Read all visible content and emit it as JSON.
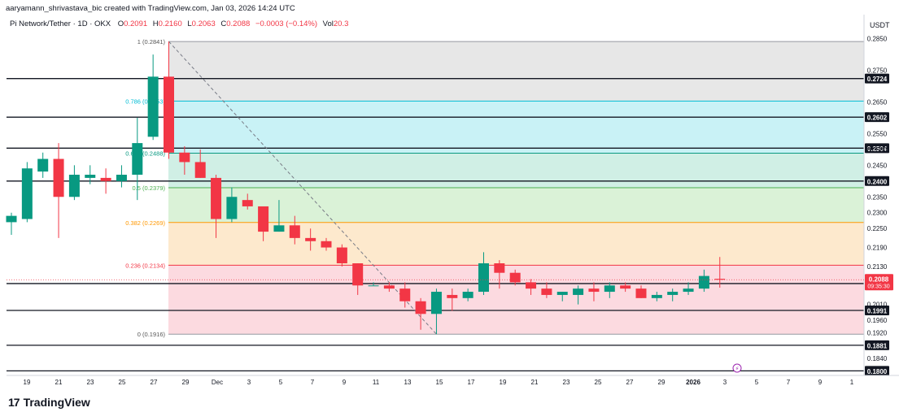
{
  "header": {
    "credit": "aaryamann_shrivastava_bic created with TradingView.com, Jan 03, 2026 14:24 UTC",
    "symbol": "Pi Network/Tether · 1D · OKX",
    "ohlc": [
      {
        "label": "O",
        "value": "0.2091"
      },
      {
        "label": "H",
        "value": "0.2160"
      },
      {
        "label": "L",
        "value": "0.2063"
      },
      {
        "label": "C",
        "value": "0.2088"
      },
      {
        "label": "",
        "value": "−0.0003 (−0.14%)"
      },
      {
        "label": "Vol",
        "value": "20.3"
      }
    ],
    "currency": "USDT"
  },
  "footer": {
    "logo_mark": "17",
    "logo_text": "TradingView"
  },
  "chart_data": {
    "type": "candlestick",
    "ylim": [
      0.1765,
      0.2885
    ],
    "x_labels": [
      "19",
      "21",
      "23",
      "25",
      "27",
      "29",
      "Dec",
      "3",
      "5",
      "7",
      "9",
      "11",
      "13",
      "15",
      "17",
      "19",
      "21",
      "23",
      "25",
      "27",
      "29",
      "2026",
      "3",
      "5",
      "7",
      "9",
      "1"
    ],
    "y_ticks": [
      "0.2850",
      "0.2750",
      "0.2650",
      "0.2550",
      "0.2500",
      "0.2450",
      "0.2350",
      "0.2300",
      "0.2250",
      "0.2190",
      "0.2130",
      "0.2010",
      "0.1960",
      "0.1920",
      "0.1840"
    ],
    "fib": [
      {
        "label": "1 (0.2841)",
        "value": 0.2841,
        "fill": "#e3e3e3",
        "line": "#9598a1"
      },
      {
        "label": "0.786 (0.2653)",
        "value": 0.2653,
        "fill": "#bff0f5",
        "line": "#00bcd4"
      },
      {
        "label": "0.618 (0.2488)",
        "value": 0.2488,
        "fill": "#c8ece0",
        "line": "#089981"
      },
      {
        "label": "0.5 (0.2379)",
        "value": 0.2379,
        "fill": "#d4f0d0",
        "line": "#4caf50"
      },
      {
        "label": "0.382 (0.2269)",
        "value": 0.2269,
        "fill": "#fde5c4",
        "line": "#ff9800"
      },
      {
        "label": "0.236 (0.2134)",
        "value": 0.2134,
        "fill": "#fbd3da",
        "line": "#f23645"
      },
      {
        "label": "0 (0.1916)",
        "value": 0.1916,
        "fill": "",
        "line": "#9598a1"
      }
    ],
    "levels": [
      "0.2724",
      "0.2602",
      "0.2504",
      "0.2400",
      "0.2076",
      "0.1991",
      "0.1881",
      "0.1800"
    ],
    "last_price": {
      "value": "0.2088",
      "countdown": "09:35:30",
      "color": "#f23645"
    },
    "candles": [
      [
        0.227,
        0.23,
        0.223,
        0.229
      ],
      [
        0.228,
        0.246,
        0.227,
        0.244
      ],
      [
        0.243,
        0.249,
        0.241,
        0.247
      ],
      [
        0.247,
        0.252,
        0.222,
        0.235
      ],
      [
        0.235,
        0.245,
        0.234,
        0.242
      ],
      [
        0.241,
        0.245,
        0.239,
        0.242
      ],
      [
        0.241,
        0.244,
        0.236,
        0.24
      ],
      [
        0.24,
        0.245,
        0.238,
        0.242
      ],
      [
        0.242,
        0.26,
        0.234,
        0.252
      ],
      [
        0.254,
        0.28,
        0.253,
        0.273
      ],
      [
        0.273,
        0.2841,
        0.247,
        0.249
      ],
      [
        0.249,
        0.251,
        0.242,
        0.246
      ],
      [
        0.246,
        0.25,
        0.241,
        0.241
      ],
      [
        0.241,
        0.242,
        0.222,
        0.228
      ],
      [
        0.228,
        0.238,
        0.227,
        0.235
      ],
      [
        0.234,
        0.236,
        0.231,
        0.232
      ],
      [
        0.232,
        0.231,
        0.221,
        0.224
      ],
      [
        0.224,
        0.234,
        0.224,
        0.226
      ],
      [
        0.226,
        0.229,
        0.22,
        0.222
      ],
      [
        0.222,
        0.225,
        0.218,
        0.221
      ],
      [
        0.221,
        0.222,
        0.218,
        0.219
      ],
      [
        0.219,
        0.22,
        0.213,
        0.214
      ],
      [
        0.214,
        0.214,
        0.204,
        0.207
      ],
      [
        0.207,
        0.208,
        0.207,
        0.207
      ],
      [
        0.207,
        0.208,
        0.205,
        0.206
      ],
      [
        0.206,
        0.208,
        0.2,
        0.202
      ],
      [
        0.202,
        0.203,
        0.193,
        0.198
      ],
      [
        0.198,
        0.206,
        0.1916,
        0.205
      ],
      [
        0.204,
        0.206,
        0.199,
        0.203
      ],
      [
        0.203,
        0.206,
        0.202,
        0.205
      ],
      [
        0.205,
        0.2175,
        0.204,
        0.214
      ],
      [
        0.214,
        0.215,
        0.206,
        0.211
      ],
      [
        0.211,
        0.212,
        0.207,
        0.208
      ],
      [
        0.208,
        0.209,
        0.204,
        0.206
      ],
      [
        0.206,
        0.208,
        0.203,
        0.204
      ],
      [
        0.204,
        0.205,
        0.202,
        0.205
      ],
      [
        0.204,
        0.207,
        0.201,
        0.206
      ],
      [
        0.206,
        0.208,
        0.202,
        0.205
      ],
      [
        0.205,
        0.208,
        0.203,
        0.207
      ],
      [
        0.207,
        0.208,
        0.205,
        0.206
      ],
      [
        0.206,
        0.207,
        0.203,
        0.203
      ],
      [
        0.203,
        0.205,
        0.202,
        0.204
      ],
      [
        0.204,
        0.206,
        0.202,
        0.205
      ],
      [
        0.205,
        0.208,
        0.204,
        0.206
      ],
      [
        0.206,
        0.212,
        0.205,
        0.21
      ],
      [
        0.2091,
        0.216,
        0.2063,
        0.2088
      ]
    ],
    "colors": {
      "up": "#089981",
      "down": "#f23645"
    }
  }
}
